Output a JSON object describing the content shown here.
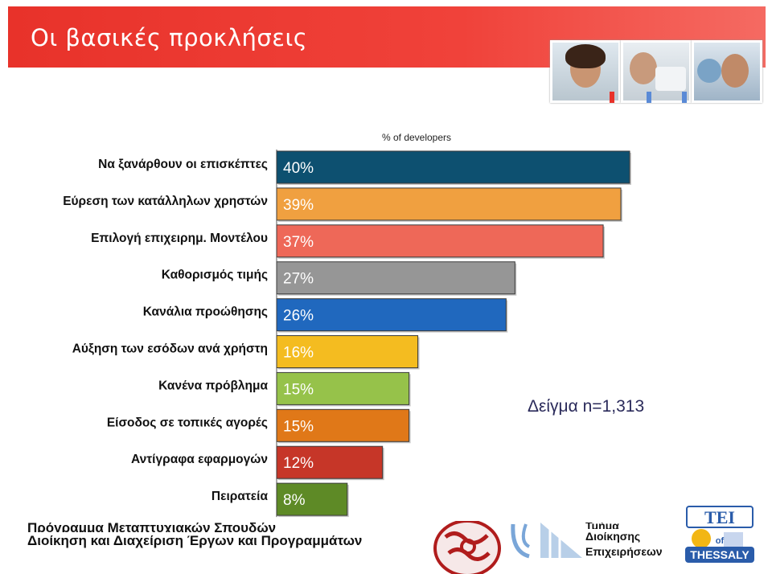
{
  "slide": {
    "title": "Οι βασικές προκλήσεις",
    "sample_note": "Δείγμα n=1,313",
    "footer_line1": "Πρόγραμμα Μεταπτυχιακών Σπουδών",
    "footer_line2": "Διοίκηση και Διαχείριση Έργων και Προγραμμάτων",
    "dept_line0": "Τμήμα",
    "dept_line1": "Διοίκησης",
    "dept_line2": "Επιχειρήσεων",
    "logo_tei_text": "ΤΕΙ",
    "logo_of_text": "of",
    "logo_thessaly_text": "THESSALY",
    "accent_color": "#e8322a"
  },
  "chart_data": {
    "type": "bar",
    "orientation": "horizontal",
    "xlabel": "% of developers",
    "categories": [
      "Να ξανάρθουν οι επισκέπτες",
      "Εύρεση των κατάλληλων χρηστών",
      "Επιλογή επιχειρημ. Μοντέλου",
      "Καθορισμός τιμής",
      "Κανάλια προώθησης",
      "Αύξηση των εσόδων ανά χρήστη",
      "Κανένα πρόβλημα",
      "Είσοδος σε τοπικές αγορές",
      "Αντίγραφα εφαρμογών",
      "Πειρατεία"
    ],
    "values": [
      40,
      39,
      37,
      27,
      26,
      16,
      15,
      15,
      12,
      8
    ],
    "value_labels": [
      "40%",
      "39%",
      "37%",
      "27%",
      "26%",
      "16%",
      "15%",
      "15%",
      "12%",
      "8%"
    ],
    "colors": [
      "#0d5070",
      "#f0a040",
      "#ee6858",
      "#969696",
      "#2068be",
      "#f4bc20",
      "#96c24a",
      "#e07818",
      "#c63628",
      "#5e8a26"
    ],
    "xlim": [
      0,
      40
    ],
    "grid": false,
    "legend": "none"
  }
}
